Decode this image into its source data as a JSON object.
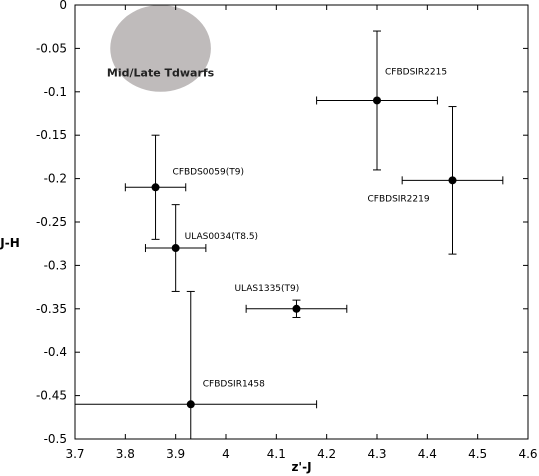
{
  "chart_data": {
    "type": "scatter",
    "xlabel": "z'-J",
    "ylabel": "J-H",
    "xlim": [
      3.7,
      4.6
    ],
    "ylim": [
      -0.5,
      0
    ],
    "x_ticks": [
      "3.7",
      "3.8",
      "3.9",
      "4",
      "4.1",
      "4.2",
      "4.3",
      "4.4",
      "4.5",
      "4.6"
    ],
    "y_ticks": [
      "0",
      "-0.05",
      "-0.1",
      "-0.15",
      "-0.2",
      "-0.25",
      "-0.3",
      "-0.35",
      "-0.4",
      "-0.45",
      "-0.5"
    ],
    "grid": false,
    "region": {
      "label": "Mid/Late Tdwarfs",
      "center": [
        3.87,
        -0.05
      ],
      "radius": [
        0.1,
        0.05
      ],
      "color": "#bfbbbb"
    },
    "points": [
      {
        "label": "CFBDSIR2215",
        "x": 4.3,
        "y": -0.11,
        "xerr": [
          0.12,
          0.12
        ],
        "yerr": [
          0.08,
          0.08
        ]
      },
      {
        "label": "CFBDSIR2219",
        "x": 4.45,
        "y": -0.202,
        "xerr": [
          0.1,
          0.1
        ],
        "yerr": [
          0.085,
          0.085
        ]
      },
      {
        "label": "CFBDS0059(T9)",
        "x": 3.86,
        "y": -0.21,
        "xerr": [
          0.06,
          0.06
        ],
        "yerr": [
          0.06,
          0.06
        ]
      },
      {
        "label": "ULAS0034(T8.5)",
        "x": 3.9,
        "y": -0.28,
        "xerr": [
          0.06,
          0.06
        ],
        "yerr": [
          0.05,
          0.05
        ]
      },
      {
        "label": "ULAS1335(T9)",
        "x": 4.14,
        "y": -0.35,
        "xerr": [
          0.1,
          0.1
        ],
        "yerr": [
          0.01,
          0.01
        ]
      },
      {
        "label": "CFBDSIR1458",
        "x": 3.93,
        "y": -0.46,
        "xerr": [
          0.23,
          0.25
        ],
        "yerr": [
          0.13,
          0.13
        ]
      }
    ]
  }
}
